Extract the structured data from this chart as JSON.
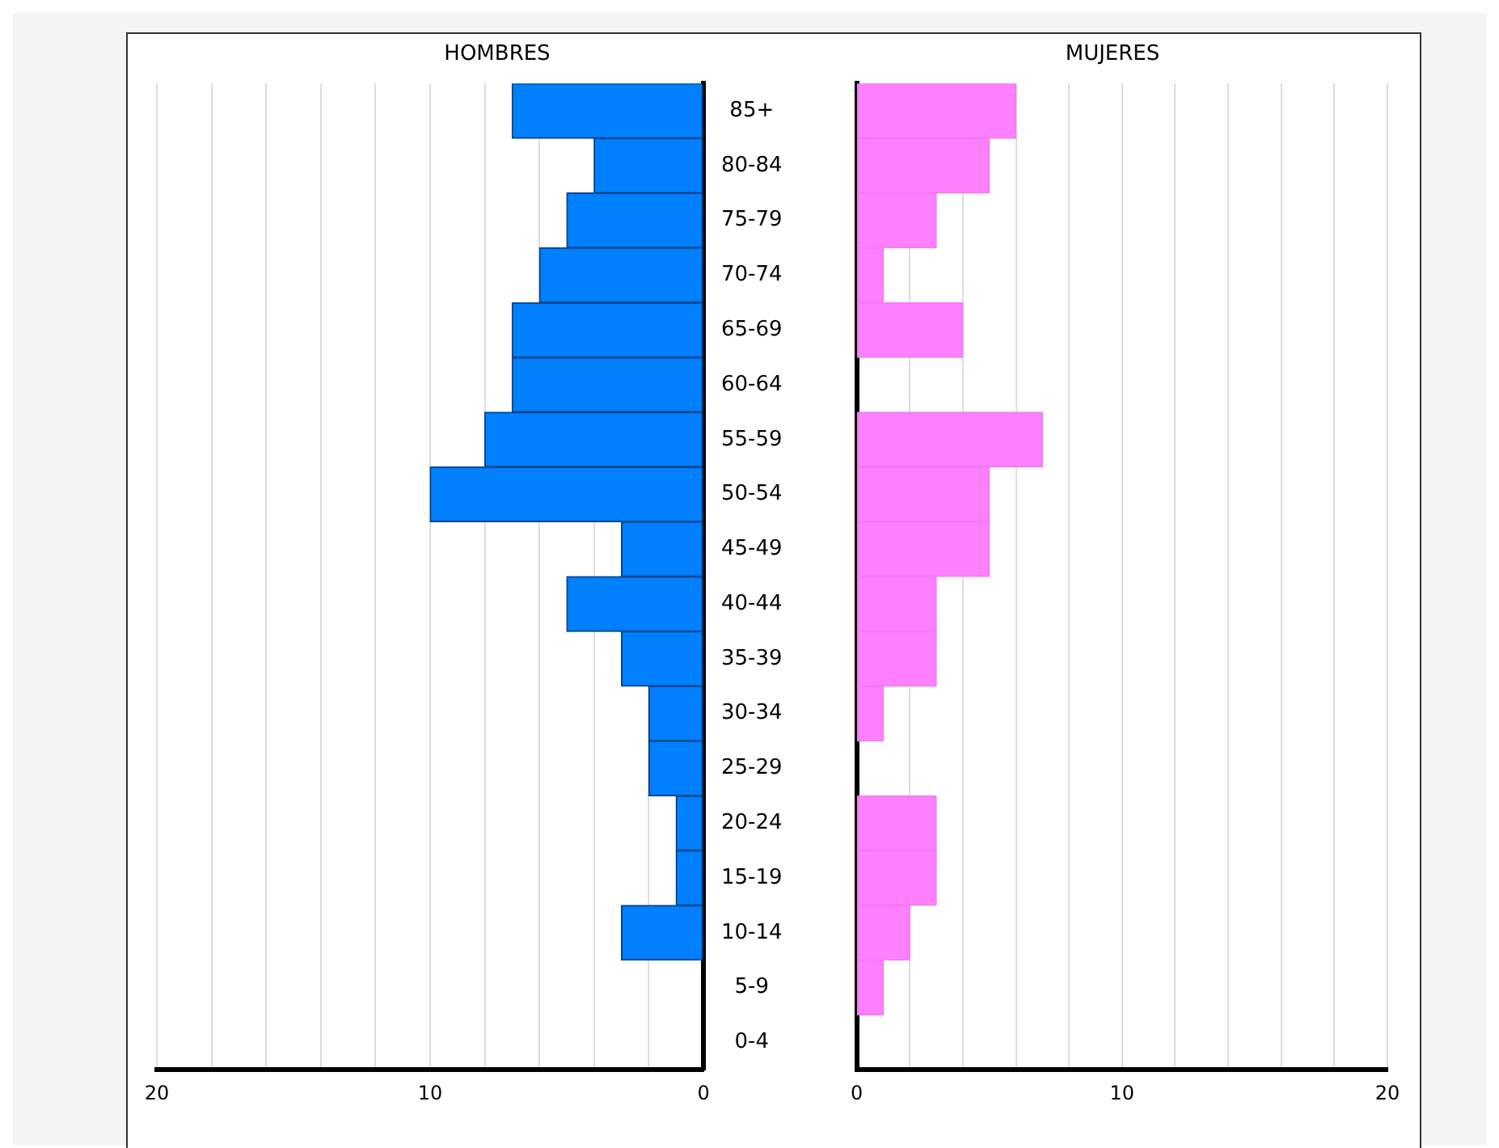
{
  "chart_data": [
    {
      "type": "bar",
      "orientation": "horizontal",
      "title": "HOMBRES",
      "categories": [
        "85+",
        "80-84",
        "75-79",
        "70-74",
        "65-69",
        "60-64",
        "55-59",
        "50-54",
        "45-49",
        "40-44",
        "35-39",
        "30-34",
        "25-29",
        "20-24",
        "15-19",
        "10-14",
        "5-9",
        "0-4"
      ],
      "series": [
        {
          "color": "#0080ff",
          "values": [
            7,
            4,
            5,
            6,
            7,
            7,
            8,
            10,
            3,
            5,
            3,
            2,
            2,
            1,
            1,
            3,
            0,
            0
          ]
        }
      ],
      "xlim": [
        20,
        0
      ],
      "xticks": [
        20,
        {
          "value": 18,
          "label": null
        },
        {
          "value": 16,
          "label": null
        },
        {
          "value": 14,
          "label": null
        },
        {
          "value": 12,
          "label": null
        },
        10,
        {
          "value": 8,
          "label": null
        },
        {
          "value": 6,
          "label": null
        },
        {
          "value": 4,
          "label": null
        },
        {
          "value": 2,
          "label": null
        },
        0
      ],
      "grid": "x",
      "legend": false
    },
    {
      "type": "bar",
      "orientation": "horizontal",
      "title": "MUJERES",
      "categories": [
        null,
        null,
        null,
        null,
        null,
        null,
        null,
        null,
        null,
        null,
        null,
        null,
        null,
        null,
        null,
        null,
        null,
        null
      ],
      "series": [
        {
          "color": "#ff80ff",
          "values": [
            6,
            5,
            3,
            1,
            4,
            0,
            7,
            5,
            5,
            3,
            3,
            1,
            0,
            3,
            3,
            2,
            1,
            0
          ]
        }
      ],
      "xlim": [
        0,
        20
      ],
      "xticks": [
        0,
        {
          "value": 2,
          "label": null
        },
        {
          "value": 4,
          "label": null
        },
        {
          "value": 6,
          "label": null
        },
        {
          "value": 8,
          "label": null
        },
        10,
        {
          "value": 12,
          "label": null
        },
        {
          "value": 14,
          "label": null
        },
        {
          "value": 16,
          "label": null
        },
        {
          "value": 18,
          "label": null
        },
        20
      ],
      "grid": "x",
      "legend": false,
      "tick_labels": "x"
    }
  ]
}
